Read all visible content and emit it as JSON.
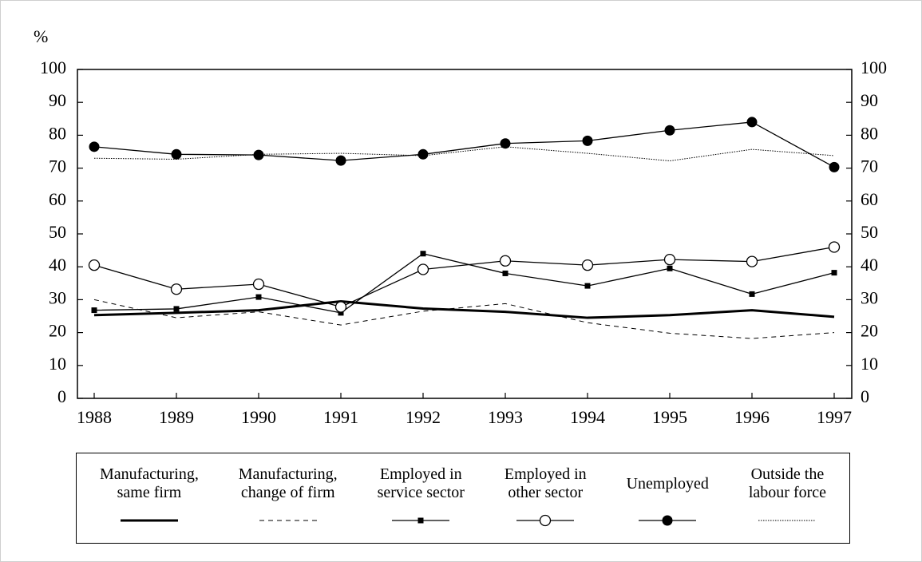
{
  "chart_data": {
    "type": "line",
    "y_label": "%",
    "categories": [
      "1988",
      "1989",
      "1990",
      "1991",
      "1992",
      "1993",
      "1994",
      "1995",
      "1996",
      "1997"
    ],
    "ylim": [
      0,
      100
    ],
    "yticks": [
      0,
      10,
      20,
      30,
      40,
      50,
      60,
      70,
      80,
      90,
      100
    ],
    "y2lim": [
      0,
      100
    ],
    "y2ticks": [
      0,
      10,
      20,
      30,
      40,
      50,
      60,
      70,
      80,
      90,
      100
    ],
    "grid": false,
    "legend": "bottom",
    "series": [
      {
        "name": "Manufacturing,\nsame firm",
        "color": "#000000",
        "line_width": 3,
        "dash": "none",
        "marker": "none",
        "values": [
          25.3,
          26.0,
          26.8,
          29.5,
          27.3,
          26.3,
          24.5,
          25.3,
          26.8,
          24.8
        ]
      },
      {
        "name": "Manufacturing,\nchange of firm",
        "color": "#000000",
        "line_width": 1,
        "dash": "6,5",
        "marker": "none",
        "values": [
          30.0,
          24.5,
          26.3,
          22.3,
          26.5,
          28.8,
          23.0,
          19.8,
          18.2,
          20.0
        ]
      },
      {
        "name": "Employed in\nservice sector",
        "color": "#000000",
        "line_width": 1.3,
        "dash": "none",
        "marker": "square",
        "values": [
          26.8,
          27.2,
          30.8,
          26.0,
          44.0,
          38.0,
          34.2,
          39.5,
          31.7,
          38.2
        ]
      },
      {
        "name": "Employed in\nother sector",
        "color": "#000000",
        "line_width": 1.3,
        "dash": "none",
        "marker": "open-circle",
        "values": [
          40.5,
          33.2,
          34.7,
          27.8,
          39.2,
          41.8,
          40.5,
          42.2,
          41.6,
          46.0
        ]
      },
      {
        "name": "Unemployed",
        "color": "#000000",
        "line_width": 1.3,
        "dash": "none",
        "marker": "filled-circle",
        "values": [
          76.5,
          74.2,
          74.0,
          72.3,
          74.2,
          77.5,
          78.3,
          81.5,
          84.0,
          70.3
        ]
      },
      {
        "name": "Outside the\nlabour force",
        "color": "#000000",
        "line_width": 1,
        "dash": "1.5,1.5",
        "marker": "none",
        "values": [
          73.0,
          72.7,
          74.2,
          74.5,
          73.8,
          76.5,
          74.5,
          72.2,
          75.7,
          73.8
        ]
      }
    ]
  }
}
